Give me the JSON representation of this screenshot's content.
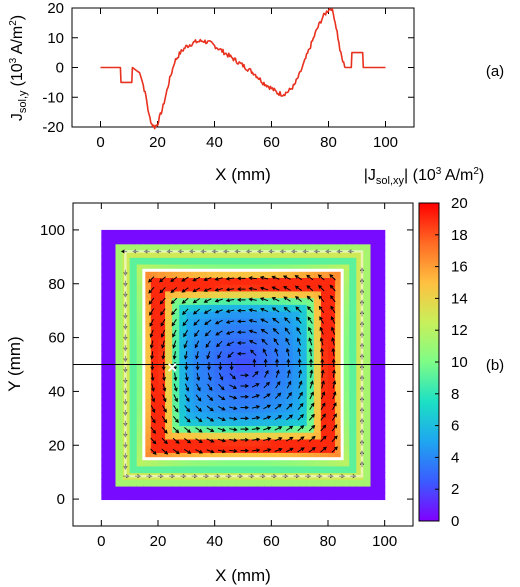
{
  "chart_data": [
    {
      "type": "line",
      "panel_label": "(a)",
      "xlabel": "X (mm)",
      "ylabel": "J",
      "ylabel_sub": "sol,y",
      "ylabel_unit": "(10",
      "ylabel_unit_exp": "3",
      "ylabel_unit_tail": " A/m",
      "ylabel_unit_exp2": "2",
      "ylabel_unit_close": ")",
      "xlim": [
        -10,
        110
      ],
      "ylim": [
        -20,
        20
      ],
      "xticks": [
        0,
        20,
        40,
        60,
        80,
        100
      ],
      "yticks": [
        -20,
        -10,
        0,
        10,
        20
      ],
      "series": [
        {
          "color": "#e8311f",
          "x": [
            0,
            7,
            7.2,
            11,
            11.2,
            14,
            16,
            17,
            18,
            19,
            20,
            22,
            24,
            26,
            28,
            30,
            33,
            36,
            39,
            42,
            45,
            48,
            51,
            54,
            57,
            60,
            62,
            64,
            66,
            68,
            70,
            72,
            74,
            76,
            78,
            80,
            81,
            82,
            83,
            84,
            85,
            86,
            86.2,
            88,
            88.2,
            92,
            92.2,
            96,
            100
          ],
          "y": [
            0,
            0,
            -5,
            -5,
            0,
            -2,
            -10,
            -16,
            -19,
            -20,
            -19,
            -13,
            -5,
            2,
            5,
            7,
            8.5,
            9,
            8,
            6,
            4,
            2,
            0,
            -2,
            -5,
            -7,
            -8.5,
            -9,
            -8,
            -6,
            -2,
            3,
            8,
            13,
            17,
            19.5,
            20,
            17,
            12,
            6,
            2,
            0,
            0,
            0,
            5,
            5,
            0,
            0,
            0
          ]
        }
      ]
    },
    {
      "type": "heatmap",
      "panel_label": "(b)",
      "xlabel": "X (mm)",
      "ylabel": "Y (mm)",
      "colorbar_label": "|J",
      "colorbar_label_sub": "sol,xy",
      "colorbar_label_unit": "| (10",
      "colorbar_label_exp": "3",
      "colorbar_label_tail": " A/m",
      "colorbar_label_exp2": "2",
      "colorbar_label_close": ")",
      "xlim": [
        -10,
        110
      ],
      "ylim": [
        -10,
        110
      ],
      "xticks": [
        0,
        20,
        40,
        60,
        80,
        100
      ],
      "yticks": [
        0,
        20,
        40,
        60,
        80,
        100
      ],
      "cbar_range": [
        0,
        20
      ],
      "cbar_ticks": [
        0,
        2,
        4,
        6,
        8,
        10,
        12,
        14,
        16,
        18,
        20
      ],
      "colormap": [
        "#8000ff",
        "#3a5cff",
        "#1fa6f0",
        "#1ce0c4",
        "#7efc87",
        "#c8f05a",
        "#ffc040",
        "#ff6a24",
        "#ff0000"
      ],
      "data_domain": [
        0,
        100
      ],
      "inner_loop": [
        15,
        85
      ],
      "outer_loop": [
        8.5,
        92
      ],
      "cut_line_y": 50,
      "marker": {
        "x": 25,
        "y": 49,
        "symbol": "×"
      },
      "line_color": "#000000",
      "loop_color": "#ffffff"
    }
  ]
}
